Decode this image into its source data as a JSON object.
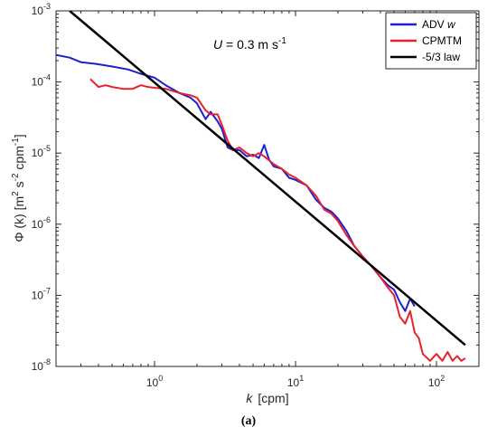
{
  "caption": "(a)",
  "chart_data": {
    "type": "line",
    "title": "",
    "xlabel_var": "k",
    "xlabel_unit": "[cpm]",
    "ylabel_var": "Φ (k)",
    "ylabel_unit_parts": [
      "[m",
      "2",
      " s",
      "-2",
      " cpm",
      "-1",
      "]"
    ],
    "x_scale": "log",
    "y_scale": "log",
    "xlim": [
      0.2,
      200
    ],
    "ylim": [
      1e-08,
      0.001
    ],
    "x_ticks": [
      1,
      10,
      100
    ],
    "x_tick_labels": [
      [
        "10",
        "0"
      ],
      [
        "10",
        "1"
      ],
      [
        "10",
        "2"
      ]
    ],
    "y_ticks": [
      1e-08,
      1e-07,
      1e-06,
      1e-05,
      0.0001,
      0.001
    ],
    "y_tick_labels": [
      [
        "10",
        "-8"
      ],
      [
        "10",
        "-7"
      ],
      [
        "10",
        "-6"
      ],
      [
        "10",
        "-5"
      ],
      [
        "10",
        "-4"
      ],
      [
        "10",
        "-3"
      ]
    ],
    "grid": false,
    "legend_position": "top-right",
    "annotation": {
      "var": "U",
      "text": " = 0.3 m s",
      "sup": "-1"
    },
    "series": [
      {
        "name_parts": [
          "ADV ",
          "w"
        ],
        "color": "#1f1fcf",
        "x": [
          0.2,
          0.25,
          0.3,
          0.38,
          0.5,
          0.65,
          0.8,
          1.0,
          1.2,
          1.5,
          1.8,
          2.0,
          2.3,
          2.5,
          2.8,
          3.0,
          3.3,
          3.6,
          4.0,
          4.5,
          5.0,
          5.5,
          6.0,
          6.5,
          7.0,
          8.0,
          9.0,
          10,
          12,
          14,
          16,
          18,
          20,
          23,
          26,
          30,
          35,
          40,
          45,
          50,
          55,
          60,
          65,
          70
        ],
        "y": [
          0.00024,
          0.00022,
          0.00019,
          0.00018,
          0.000165,
          0.00015,
          0.00013,
          0.000115,
          9e-05,
          7e-05,
          6e-05,
          5e-05,
          3e-05,
          3.8e-05,
          2.8e-05,
          2.2e-05,
          1.2e-05,
          1.1e-05,
          1.1e-05,
          9e-06,
          9.5e-06,
          8.5e-06,
          1.3e-05,
          8e-06,
          6.5e-06,
          6e-06,
          4.5e-06,
          4.2e-06,
          3.5e-06,
          2.2e-06,
          1.7e-06,
          1.5e-06,
          1.2e-06,
          8e-07,
          5e-07,
          3.5e-07,
          2.5e-07,
          1.8e-07,
          1.4e-07,
          1.2e-07,
          8e-08,
          6e-08,
          9e-08,
          7e-08
        ]
      },
      {
        "name_parts": [
          "CPMTM",
          ""
        ],
        "color": "#e8222b",
        "x": [
          0.35,
          0.4,
          0.45,
          0.5,
          0.6,
          0.7,
          0.8,
          0.9,
          1.0,
          1.2,
          1.5,
          1.8,
          2.0,
          2.3,
          2.5,
          2.8,
          3.0,
          3.3,
          3.6,
          4.0,
          4.5,
          5.0,
          5.5,
          6.0,
          7.0,
          8.0,
          9.0,
          10,
          12,
          14,
          16,
          18,
          20,
          23,
          26,
          30,
          35,
          40,
          45,
          50,
          55,
          60,
          65,
          70,
          75,
          80,
          90,
          100,
          110,
          120,
          130,
          140,
          150,
          160
        ],
        "y": [
          0.00011,
          8.5e-05,
          9e-05,
          8.5e-05,
          8e-05,
          8e-05,
          9e-05,
          8.5e-05,
          8.3e-05,
          8e-05,
          7e-05,
          6.5e-05,
          6e-05,
          4e-05,
          3.5e-05,
          3.5e-05,
          2.5e-05,
          1.5e-05,
          1.1e-05,
          1.2e-05,
          1e-05,
          9e-06,
          1e-05,
          9e-06,
          7e-06,
          6e-06,
          5e-06,
          4.5e-06,
          3.5e-06,
          2.5e-06,
          1.6e-06,
          1.4e-06,
          1.1e-06,
          7e-07,
          5e-07,
          3.5e-07,
          2.5e-07,
          1.8e-07,
          1.3e-07,
          1e-07,
          5e-08,
          4e-08,
          6e-08,
          3e-08,
          2.5e-08,
          1.5e-08,
          1.2e-08,
          1.5e-08,
          1.2e-08,
          1.6e-08,
          1.2e-08,
          1.4e-08,
          1.2e-08,
          1.3e-08
        ]
      },
      {
        "name_parts": [
          "-5/3 law",
          ""
        ],
        "color": "#000000",
        "x": [
          0.25,
          160
        ],
        "y": [
          0.001,
          2e-08
        ]
      }
    ]
  }
}
